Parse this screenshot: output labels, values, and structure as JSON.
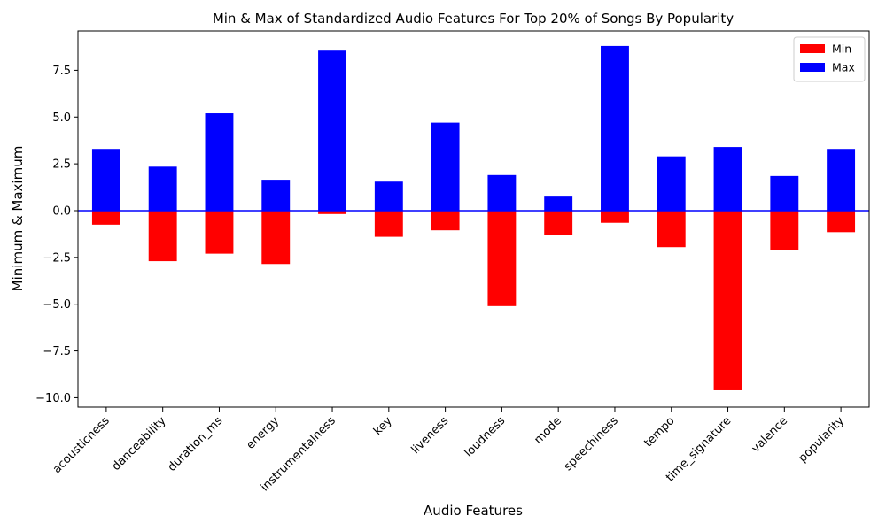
{
  "chart_data": {
    "type": "bar",
    "title": "Min & Max of Standardized Audio Features For Top 20% of Songs By Popularity",
    "xlabel": "Audio Features",
    "ylabel": "Minimum & Maximum",
    "categories": [
      "acousticness",
      "danceability",
      "duration_ms",
      "energy",
      "instrumentalness",
      "key",
      "liveness",
      "loudness",
      "mode",
      "speechiness",
      "tempo",
      "time_signature",
      "valence",
      "popularity"
    ],
    "series": [
      {
        "name": "Min",
        "color": "#ff0000",
        "values": [
          -0.75,
          -2.7,
          -2.3,
          -2.85,
          -0.18,
          -1.4,
          -1.05,
          -5.1,
          -1.3,
          -0.65,
          -1.95,
          -9.6,
          -2.1,
          -1.15
        ]
      },
      {
        "name": "Max",
        "color": "#0000ff",
        "values": [
          3.3,
          2.35,
          5.2,
          1.65,
          8.55,
          1.55,
          4.7,
          1.9,
          0.75,
          8.8,
          2.9,
          3.4,
          1.85,
          3.3
        ]
      }
    ],
    "ylim": [
      -10.5,
      9.6
    ],
    "yticks": [
      -10.0,
      -7.5,
      -5.0,
      -2.5,
      0.0,
      2.5,
      5.0,
      7.5
    ],
    "ytick_labels": [
      "−10.0",
      "−7.5",
      "−5.0",
      "−2.5",
      "0.0",
      "2.5",
      "5.0",
      "7.5"
    ],
    "zero_line_color": "#0000ff",
    "grid": false,
    "legend_position": "top-right"
  }
}
